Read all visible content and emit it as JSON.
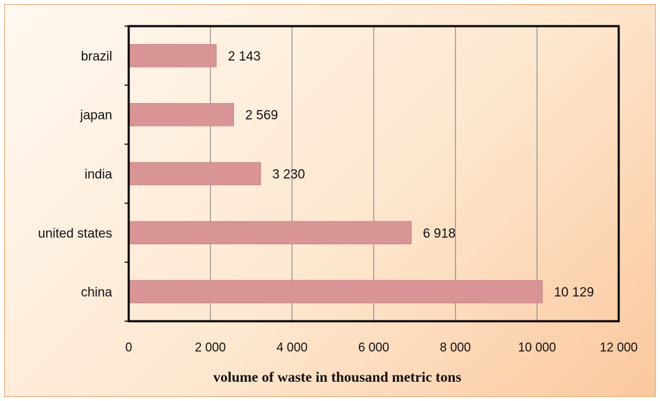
{
  "chart_data": {
    "type": "bar",
    "orientation": "horizontal",
    "categories": [
      "brazil",
      "japan",
      "india",
      "united states",
      "china"
    ],
    "values": [
      2143,
      2569,
      3230,
      6918,
      10129
    ],
    "value_labels": [
      "2 143",
      "2 569",
      "3 230",
      "6 918",
      "10 129"
    ],
    "xlabel": "volume of waste in thousand metric tons",
    "ylabel": "",
    "xlim": [
      0,
      12000
    ],
    "xticks": [
      0,
      2000,
      4000,
      6000,
      8000,
      10000,
      12000
    ],
    "xtick_labels": [
      "0",
      "2 000",
      "4 000",
      "6 000",
      "8 000",
      "10 000",
      "12 000"
    ],
    "grid": "vertical",
    "legend": "none",
    "colors": {
      "bar": "#d99595",
      "bar_edge": "#c98282",
      "grid": "#8c8c8c",
      "plot_border": "#000000",
      "background_light": "#fff9f1",
      "background_dark": "#fbc89d",
      "frame_border": "#f2a56b"
    }
  }
}
